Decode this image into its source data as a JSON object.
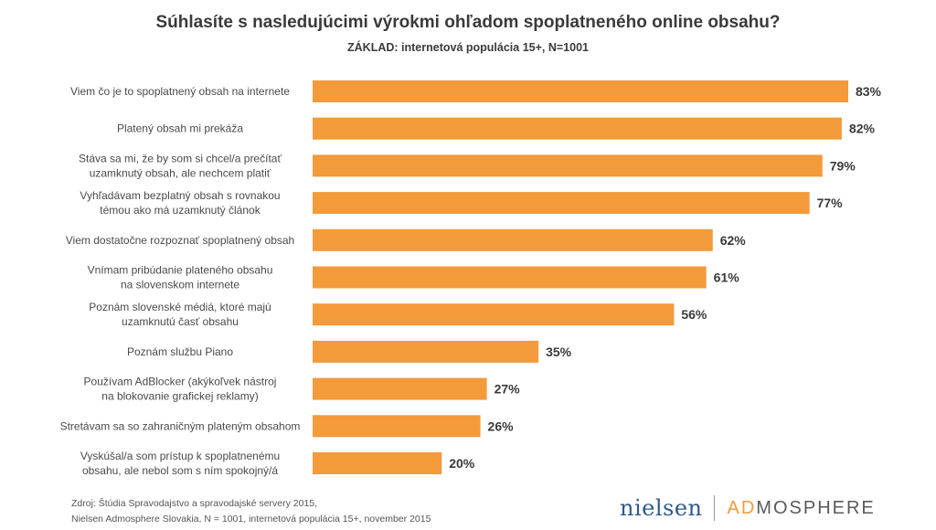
{
  "chart_data": {
    "type": "bar",
    "orientation": "horizontal",
    "title": "Súhlasíte s nasledujúcimi výrokmi ohľadom spoplatneného online obsahu?",
    "subtitle": "ZÁKLAD: internetová populácia 15+, N=1001",
    "categories": [
      [
        "Viem čo je to spoplatnený obsah na internete"
      ],
      [
        "Platený obsah mi prekáža"
      ],
      [
        "Stáva sa mi, že by som si chcel/a prečítať",
        "uzamknutý obsah, ale nechcem platiť"
      ],
      [
        "Vyhľadávam bezplatný obsah s rovnakou",
        "témou ako má uzamknutý článok"
      ],
      [
        "Viem dostatočne rozpoznať spoplatnený obsah"
      ],
      [
        "Vnímam pribúdanie plateného obsahu",
        "na slovenskom internete"
      ],
      [
        "Poznám slovenské médiá, ktoré majú",
        "uzamknutú časť obsahu"
      ],
      [
        "Poznám službu Piano"
      ],
      [
        "Používam AdBlocker (akýkoľvek nástroj",
        "na blokovanie grafickej reklamy)"
      ],
      [
        "Stretávam sa so zahraničným plateným obsahom"
      ],
      [
        "Vyskúšal/a som prístup k spoplatnenému",
        "obsahu, ale nebol som s ním spokojný/á"
      ]
    ],
    "values": [
      83,
      82,
      79,
      77,
      62,
      61,
      56,
      35,
      27,
      26,
      20
    ],
    "value_labels": [
      "83%",
      "82%",
      "79%",
      "77%",
      "62%",
      "61%",
      "56%",
      "35%",
      "27%",
      "26%",
      "20%"
    ],
    "xlim": [
      0,
      100
    ],
    "bar_color": "#F39A3A",
    "grid": false,
    "legend": "none"
  },
  "source": {
    "line1": "Zdroj: Štúdia Spravodajstvo a spravodajské servery 2015,",
    "line2": "Nielsen Admosphere Slovakia, N = 1001, internetová populácia 15+, november 2015"
  },
  "logos": {
    "nielsen": "nielsen",
    "admosphere_prefix": "AD",
    "admosphere_rest": "MOSPHERE"
  }
}
